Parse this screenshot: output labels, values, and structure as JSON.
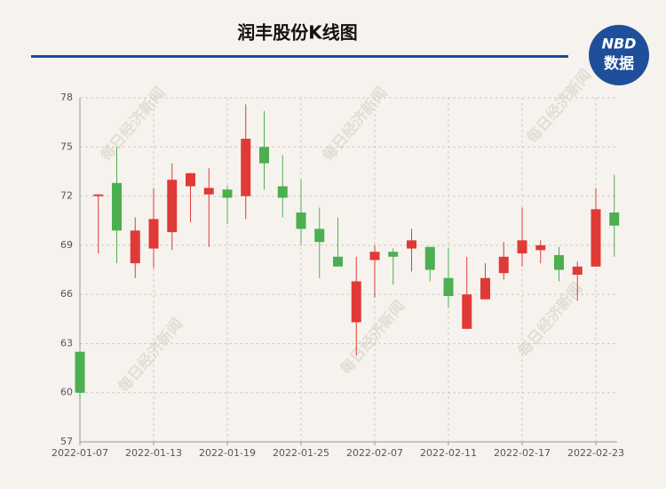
{
  "chart_data": {
    "type": "candlestick",
    "title": "润丰股份K线图",
    "logo": {
      "top": "NBD",
      "bottom": "数据"
    },
    "watermark": "每日经济新闻",
    "categories": [
      "2022-01-07",
      null,
      null,
      null,
      "2022-01-13",
      null,
      null,
      null,
      "2022-01-19",
      null,
      null,
      null,
      "2022-01-25",
      null,
      null,
      null,
      "2022-02-07",
      null,
      null,
      null,
      "2022-02-11",
      null,
      null,
      null,
      "2022-02-17",
      null,
      null,
      null,
      "2022-02-23",
      null
    ],
    "open": [
      62.5,
      72.0,
      72.8,
      67.9,
      68.8,
      69.8,
      72.6,
      72.1,
      72.4,
      72.0,
      75.0,
      72.6,
      71.0,
      70.0,
      68.3,
      64.3,
      68.1,
      68.6,
      68.8,
      68.9,
      67.0,
      63.9,
      65.7,
      67.3,
      68.5,
      68.7,
      68.4,
      67.2,
      67.7,
      71.0
    ],
    "close": [
      60.0,
      72.1,
      69.9,
      69.9,
      70.6,
      73.0,
      73.4,
      72.5,
      71.9,
      75.5,
      74.0,
      71.9,
      70.0,
      69.2,
      67.7,
      66.8,
      68.6,
      68.3,
      69.3,
      67.5,
      65.9,
      66.0,
      67.0,
      68.3,
      69.3,
      69.0,
      67.5,
      67.7,
      71.2,
      70.2
    ],
    "high": [
      62.5,
      72.1,
      75.0,
      70.7,
      72.5,
      74.0,
      73.4,
      73.7,
      72.6,
      77.6,
      77.2,
      74.5,
      73.0,
      71.3,
      70.7,
      68.3,
      69.0,
      68.8,
      70.0,
      68.9,
      68.8,
      68.3,
      67.9,
      69.2,
      71.3,
      69.3,
      68.9,
      68.0,
      72.5,
      73.3
    ],
    "low": [
      59.6,
      68.5,
      67.9,
      67.0,
      67.6,
      68.7,
      70.4,
      68.9,
      70.3,
      70.6,
      72.4,
      70.7,
      69.0,
      67.0,
      67.7,
      62.3,
      65.8,
      66.6,
      67.4,
      66.8,
      65.2,
      63.9,
      65.7,
      66.9,
      67.7,
      67.9,
      66.8,
      65.6,
      67.7,
      68.3
    ],
    "up_color": "#e03a36",
    "down_color": "#4caf50",
    "ylim": [
      57,
      78
    ],
    "yticks": [
      57,
      60,
      63,
      66,
      69,
      72,
      75,
      78
    ],
    "grid": true
  }
}
